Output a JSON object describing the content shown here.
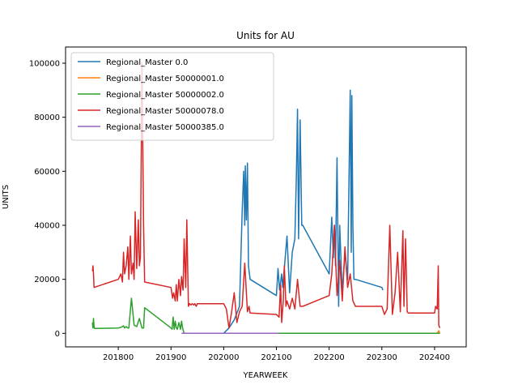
{
  "chart_data": {
    "type": "line",
    "title": "Units for AU",
    "xlabel": "YEARWEEK",
    "ylabel": "UNITS",
    "xlim": [
      201700,
      202460
    ],
    "ylim": [
      -5000,
      106000
    ],
    "xticks": [
      201800,
      201900,
      202000,
      202100,
      202200,
      202300,
      202400
    ],
    "yticks": [
      0,
      20000,
      40000,
      60000,
      80000,
      100000
    ],
    "grid": false,
    "legend_position": "top-left",
    "series": [
      {
        "name": "Regional_Master 0.0",
        "color": "#1f77b4",
        "x": [
          202000,
          202010,
          202020,
          202030,
          202035,
          202038,
          202040,
          202041,
          202043,
          202045,
          202047,
          202050,
          202100,
          202103,
          202106,
          202110,
          202112,
          202120,
          202125,
          202130,
          202135,
          202138,
          202140,
          202142,
          202145,
          202148,
          202150,
          202200,
          202205,
          202208,
          202210,
          202212,
          202215,
          202218,
          202220,
          202225,
          202230,
          202235,
          202240,
          202242,
          202243,
          202245,
          202247,
          202248,
          202250,
          202300,
          202302
        ],
        "y": [
          0,
          2000,
          5000,
          10000,
          45000,
          60000,
          40000,
          62000,
          42000,
          63000,
          25000,
          20000,
          14000,
          24000,
          16000,
          22000,
          17000,
          36000,
          15000,
          30000,
          35000,
          60000,
          83000,
          35000,
          79000,
          40000,
          40000,
          22000,
          43000,
          28000,
          40000,
          25000,
          65000,
          10000,
          40000,
          15000,
          30000,
          20000,
          90000,
          30000,
          88000,
          40000,
          20000,
          20000,
          20000,
          17000,
          16000
        ]
      },
      {
        "name": "Regional_Master 50000001.0",
        "color": "#ff7f0e",
        "x": [
          202405,
          202408,
          202410
        ],
        "y": [
          0,
          1000,
          0
        ]
      },
      {
        "name": "Regional_Master 50000002.0",
        "color": "#2ca02c",
        "x": [
          201751,
          201752,
          201753,
          201754,
          201755,
          201800,
          201805,
          201810,
          201812,
          201815,
          201818,
          201820,
          201825,
          201830,
          201835,
          201840,
          201845,
          201848,
          201850,
          201900,
          201902,
          201904,
          201906,
          201908,
          201910,
          201912,
          201915,
          201918,
          201920,
          201922,
          201925,
          202000,
          202050,
          202100,
          202150,
          202200,
          202250,
          202300,
          202350,
          202400,
          202410
        ],
        "y": [
          4000,
          2000,
          5500,
          2500,
          1800,
          2000,
          2200,
          2800,
          2000,
          2500,
          2000,
          2000,
          13000,
          3000,
          2500,
          5500,
          2000,
          2000,
          9500,
          2000,
          1500,
          6000,
          1500,
          4500,
          2000,
          1500,
          4000,
          1500,
          4500,
          2000,
          0,
          0,
          0,
          0,
          0,
          0,
          0,
          0,
          0,
          0,
          0
        ]
      },
      {
        "name": "Regional_Master 50000078.0",
        "color": "#d62728",
        "x": [
          201751,
          201752,
          201753,
          201754,
          201800,
          201805,
          201808,
          201810,
          201812,
          201815,
          201818,
          201820,
          201823,
          201825,
          201828,
          201830,
          201832,
          201835,
          201838,
          201840,
          201842,
          201845,
          201848,
          201850,
          201900,
          201903,
          201905,
          201908,
          201910,
          201912,
          201915,
          201918,
          201920,
          201923,
          201925,
          201928,
          201930,
          201933,
          201935,
          201938,
          201940,
          201943,
          201945,
          201948,
          201950,
          202000,
          202005,
          202010,
          202015,
          202020,
          202025,
          202030,
          202035,
          202040,
          202045,
          202048,
          202050,
          202100,
          202105,
          202108,
          202110,
          202113,
          202115,
          202118,
          202120,
          202125,
          202130,
          202135,
          202140,
          202145,
          202150,
          202200,
          202205,
          202210,
          202215,
          202220,
          202225,
          202230,
          202235,
          202240,
          202245,
          202250,
          202300,
          202305,
          202310,
          202315,
          202320,
          202325,
          202330,
          202335,
          202340,
          202342,
          202345,
          202348,
          202350,
          202400,
          202402,
          202405,
          202407,
          202408,
          202410
        ],
        "y": [
          23000,
          25000,
          22000,
          17000,
          20000,
          22000,
          19000,
          30000,
          22000,
          25000,
          32000,
          20000,
          36000,
          22000,
          26000,
          20000,
          45000,
          24000,
          42000,
          25000,
          28000,
          100000,
          40000,
          19000,
          17000,
          13000,
          15000,
          12000,
          18000,
          12000,
          20000,
          14000,
          21000,
          16000,
          35000,
          17000,
          42000,
          10000,
          11000,
          10500,
          11000,
          10500,
          11000,
          10000,
          11000,
          11000,
          9000,
          2000,
          8000,
          15000,
          4000,
          8000,
          10000,
          26000,
          8000,
          10000,
          7500,
          7000,
          6000,
          18000,
          4000,
          12000,
          25000,
          10000,
          12000,
          9000,
          13000,
          9000,
          20000,
          10000,
          10000,
          14000,
          22000,
          40000,
          14000,
          27000,
          12000,
          32000,
          17000,
          22000,
          12000,
          10000,
          10000,
          7000,
          9000,
          40000,
          7000,
          15000,
          30000,
          8000,
          38000,
          10000,
          35000,
          8000,
          7500,
          7500,
          10000,
          9000,
          25000,
          3000,
          2000
        ]
      },
      {
        "name": "Regional_Master 50000385.0",
        "color": "#9467bd",
        "x": [
          201920,
          201925,
          202000,
          202050,
          202100,
          202105
        ],
        "y": [
          0,
          0,
          0,
          0,
          0,
          0
        ]
      }
    ]
  }
}
